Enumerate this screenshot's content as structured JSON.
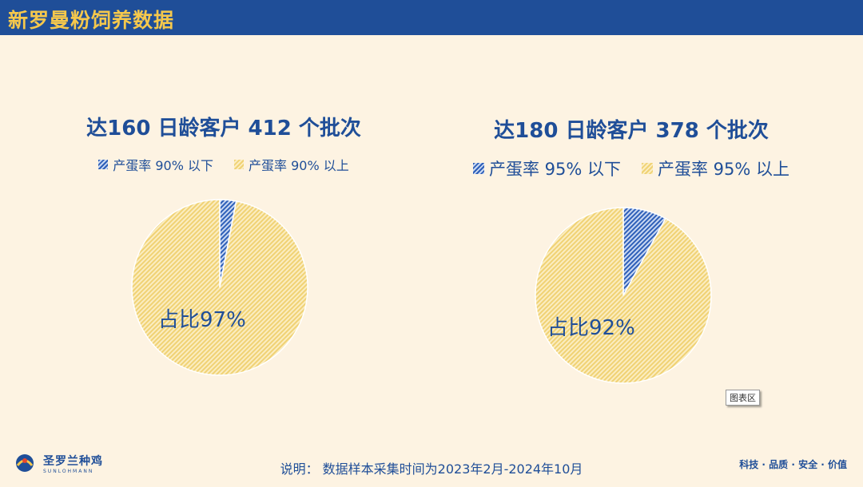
{
  "header": {
    "title": "新罗曼粉饲养数据"
  },
  "chart_data": [
    {
      "type": "pie",
      "title": "达160 日龄客户 412 个批次",
      "categories": [
        "产蛋率 90% 以下",
        "产蛋率 90% 以上"
      ],
      "values": [
        3,
        97
      ],
      "colors": [
        "#2e5fb8",
        "#f0d274"
      ],
      "annotation": "占比97%"
    },
    {
      "type": "pie",
      "title": "达180 日龄客户 378 个批次",
      "categories": [
        "产蛋率 95% 以下",
        "产蛋率 95% 以上"
      ],
      "values": [
        8,
        92
      ],
      "colors": [
        "#2e5fb8",
        "#f0d274"
      ],
      "annotation": "占比92%"
    }
  ],
  "plot_area_tag": "图表区",
  "footer": {
    "logo_cn": "圣罗兰种鸡",
    "logo_en": "SUNLOHMANN",
    "note": "说明：  数据样本采集时间为2023年2月-2024年10月",
    "slogan": "科技 · 品质 · 安全 · 价值"
  }
}
